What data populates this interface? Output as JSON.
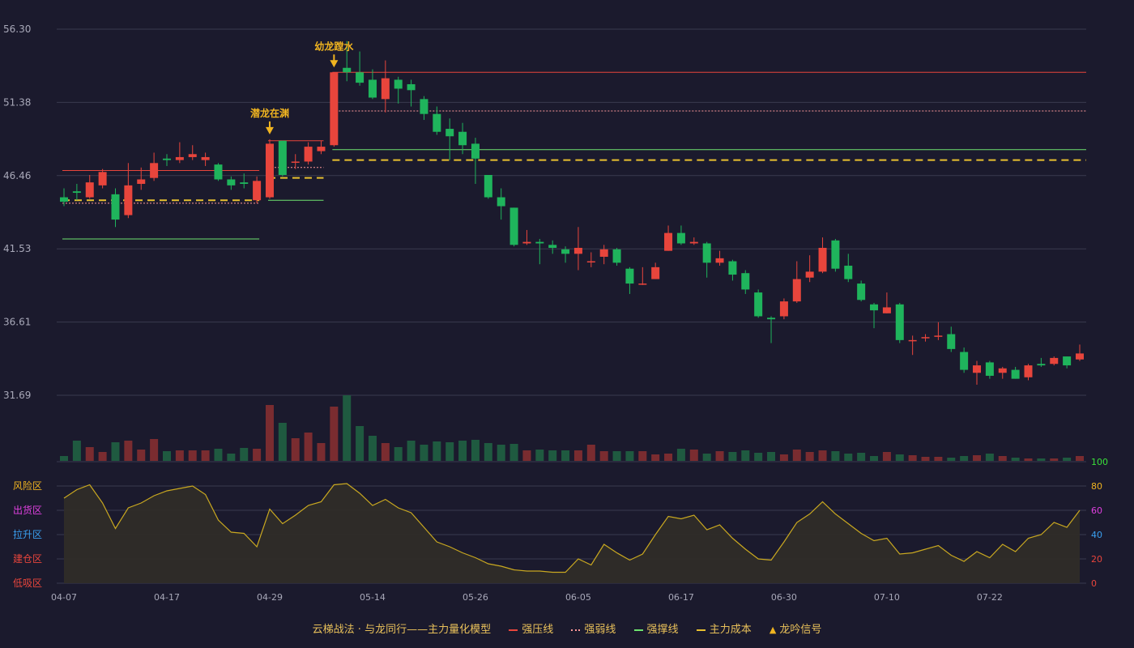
{
  "chart_data": {
    "type": "candlestick",
    "title": "",
    "price_axis": {
      "ticks": [
        "56.30",
        "51.38",
        "46.46",
        "41.53",
        "36.61",
        "31.69"
      ],
      "range": [
        31.69,
        56.3
      ]
    },
    "x_labels": [
      "04-07",
      "04-17",
      "04-29",
      "05-14",
      "05-26",
      "06-05",
      "06-17",
      "06-30",
      "07-10",
      "07-22"
    ],
    "x_label_index": [
      0,
      8,
      16,
      24,
      32,
      40,
      48,
      56,
      64,
      72
    ],
    "candles": [
      [
        45.0,
        44.7,
        45.6,
        44.4
      ],
      [
        45.4,
        45.3,
        45.9,
        44.8
      ],
      [
        45.0,
        46.0,
        46.5,
        44.9
      ],
      [
        45.8,
        46.7,
        46.9,
        45.6
      ],
      [
        45.2,
        43.5,
        45.6,
        43.0
      ],
      [
        43.8,
        45.8,
        47.3,
        43.6
      ],
      [
        45.9,
        46.2,
        47.0,
        45.5
      ],
      [
        46.3,
        47.3,
        48.0,
        46.1
      ],
      [
        47.6,
        47.5,
        47.9,
        47.1
      ],
      [
        47.5,
        47.7,
        48.7,
        47.3
      ],
      [
        47.7,
        47.9,
        48.5,
        47.5
      ],
      [
        47.5,
        47.7,
        48.0,
        47.1
      ],
      [
        47.2,
        46.2,
        47.3,
        46.1
      ],
      [
        46.2,
        45.8,
        46.4,
        45.5
      ],
      [
        46.0,
        45.9,
        46.6,
        45.6
      ],
      [
        44.8,
        46.1,
        46.4,
        44.6
      ],
      [
        45.0,
        48.6,
        48.9,
        44.9
      ],
      [
        48.8,
        46.5,
        48.8,
        46.4
      ],
      [
        47.4,
        47.4,
        47.9,
        46.9
      ],
      [
        47.4,
        48.4,
        48.7,
        47.2
      ],
      [
        48.1,
        48.4,
        48.8,
        47.9
      ],
      [
        48.5,
        53.4,
        53.4,
        48.4
      ],
      [
        53.7,
        53.4,
        55.5,
        52.8
      ],
      [
        53.4,
        52.7,
        54.8,
        52.5
      ],
      [
        52.9,
        51.7,
        53.6,
        51.6
      ],
      [
        51.6,
        53.0,
        54.2,
        50.7
      ],
      [
        52.9,
        52.3,
        53.1,
        51.3
      ],
      [
        52.6,
        52.2,
        52.9,
        51.1
      ],
      [
        51.6,
        50.6,
        51.8,
        50.2
      ],
      [
        50.6,
        49.4,
        51.1,
        49.2
      ],
      [
        49.6,
        49.1,
        50.3,
        47.5
      ],
      [
        49.4,
        48.5,
        50.0,
        47.9
      ],
      [
        48.6,
        47.6,
        49.0,
        45.9
      ],
      [
        46.5,
        45.0,
        46.5,
        44.9
      ],
      [
        45.0,
        44.4,
        45.6,
        43.5
      ],
      [
        44.3,
        41.8,
        44.3,
        41.7
      ],
      [
        41.9,
        42.0,
        42.8,
        41.8
      ],
      [
        42.0,
        41.9,
        42.2,
        40.5
      ],
      [
        41.8,
        41.6,
        42.1,
        41.2
      ],
      [
        41.5,
        41.2,
        41.7,
        40.6
      ],
      [
        41.2,
        41.6,
        43.0,
        40.1
      ],
      [
        40.7,
        40.7,
        41.3,
        40.3
      ],
      [
        41.0,
        41.5,
        41.8,
        40.5
      ],
      [
        41.5,
        40.6,
        41.6,
        40.4
      ],
      [
        40.2,
        39.2,
        40.3,
        38.5
      ],
      [
        39.2,
        39.2,
        40.3,
        39.1
      ],
      [
        39.5,
        40.3,
        40.6,
        39.5
      ],
      [
        41.4,
        42.6,
        43.1,
        41.4
      ],
      [
        42.6,
        41.9,
        43.1,
        41.8
      ],
      [
        41.9,
        42.0,
        42.3,
        41.8
      ],
      [
        41.9,
        40.6,
        42.0,
        39.6
      ],
      [
        40.6,
        40.9,
        41.4,
        40.4
      ],
      [
        40.7,
        39.8,
        40.8,
        39.4
      ],
      [
        39.9,
        38.8,
        40.1,
        38.5
      ],
      [
        38.6,
        37.0,
        38.8,
        36.9
      ],
      [
        36.9,
        36.8,
        37.0,
        35.2
      ],
      [
        37.0,
        38.0,
        38.2,
        36.8
      ],
      [
        38.0,
        39.5,
        40.7,
        37.9
      ],
      [
        39.6,
        40.0,
        41.1,
        39.3
      ],
      [
        40.0,
        41.6,
        42.3,
        39.9
      ],
      [
        42.1,
        40.2,
        42.2,
        40.0
      ],
      [
        40.4,
        39.5,
        41.2,
        39.3
      ],
      [
        39.2,
        38.1,
        39.4,
        38.0
      ],
      [
        37.8,
        37.4,
        37.9,
        36.2
      ],
      [
        37.2,
        37.6,
        38.6,
        37.2
      ],
      [
        37.8,
        35.4,
        37.9,
        35.2
      ],
      [
        35.4,
        35.4,
        35.7,
        34.4
      ],
      [
        35.6,
        35.6,
        35.8,
        35.3
      ],
      [
        35.7,
        35.7,
        36.6,
        35.4
      ],
      [
        35.8,
        34.8,
        36.3,
        34.6
      ],
      [
        34.6,
        33.4,
        34.9,
        33.2
      ],
      [
        33.2,
        33.7,
        34.0,
        32.4
      ],
      [
        33.9,
        33.0,
        34.0,
        32.8
      ],
      [
        33.2,
        33.5,
        33.6,
        32.8
      ],
      [
        33.4,
        32.8,
        33.6,
        32.8
      ],
      [
        32.9,
        33.7,
        33.8,
        32.7
      ],
      [
        33.8,
        33.7,
        34.2,
        33.6
      ],
      [
        33.8,
        34.2,
        34.3,
        33.7
      ],
      [
        34.3,
        33.7,
        34.3,
        33.5
      ],
      [
        34.1,
        34.5,
        35.1,
        34.0
      ]
    ],
    "volume": [
      6,
      25,
      17,
      11,
      23,
      25,
      14,
      27,
      12,
      13,
      13,
      13,
      15,
      9,
      16,
      15,
      69,
      47,
      28,
      35,
      22,
      67,
      81,
      43,
      31,
      22,
      17,
      25,
      20,
      24,
      23,
      25,
      26,
      22,
      20,
      21,
      13,
      14,
      13,
      13,
      13,
      20,
      12,
      12,
      12,
      12,
      8,
      9,
      15,
      14,
      9,
      12,
      11,
      13,
      10,
      11,
      8,
      14,
      11,
      13,
      12,
      9,
      10,
      6,
      11,
      8,
      7,
      5,
      5,
      4,
      6,
      7,
      9,
      6,
      4,
      3,
      3,
      3,
      4,
      6
    ],
    "sentiment": [
      70,
      77,
      81,
      66,
      45,
      62,
      66,
      72,
      76,
      78,
      80,
      73,
      52,
      42,
      41,
      30,
      61,
      49,
      56,
      64,
      67,
      81,
      82,
      74,
      64,
      69,
      62,
      58,
      46,
      34,
      30,
      25,
      21,
      16,
      14,
      11,
      10,
      10,
      9,
      9,
      20,
      15,
      32,
      25,
      19,
      24,
      40,
      55,
      53,
      56,
      44,
      48,
      37,
      28,
      20,
      19,
      34,
      50,
      57,
      67,
      57,
      49,
      41,
      35,
      37,
      24,
      25,
      28,
      31,
      23,
      18,
      26,
      21,
      32,
      26,
      37,
      40,
      50,
      46,
      60
    ],
    "signals": [
      {
        "label": "潜龙在渊",
        "index": 16
      },
      {
        "label": "幼龙蹚水",
        "index": 21
      }
    ],
    "levels": [
      {
        "name": "强压线",
        "value": 46.8,
        "from": 0,
        "to": 15,
        "style": "solid"
      },
      {
        "name": "强弱线",
        "value": 44.6,
        "from": 0,
        "to": 15,
        "style": "dotted"
      },
      {
        "name": "强撑线",
        "value": 42.2,
        "from": 0,
        "to": 15,
        "style": "solid"
      },
      {
        "name": "主力成本",
        "value": 44.8,
        "from": 0,
        "to": 15,
        "style": "dashed"
      },
      {
        "name": "强压线",
        "value": 48.8,
        "from": 16,
        "to": 20,
        "style": "solid"
      },
      {
        "name": "强弱线",
        "value": 47.0,
        "from": 16,
        "to": 20,
        "style": "dotted"
      },
      {
        "name": "强撑线",
        "value": 44.8,
        "from": 16,
        "to": 20,
        "style": "solid"
      },
      {
        "name": "主力成本",
        "value": 46.3,
        "from": 16,
        "to": 20,
        "style": "dashed"
      },
      {
        "name": "强压线",
        "value": 53.4,
        "from": 21,
        "to": 79,
        "style": "solid"
      },
      {
        "name": "强弱线",
        "value": 50.8,
        "from": 21,
        "to": 79,
        "style": "dotted"
      },
      {
        "name": "强撑线",
        "value": 48.2,
        "from": 21,
        "to": 79,
        "style": "solid"
      },
      {
        "name": "主力成本",
        "value": 47.5,
        "from": 21,
        "to": 79,
        "style": "dashed"
      }
    ],
    "sentiment_axis": {
      "ticks_right": [
        "100",
        "80",
        "60",
        "40",
        "20",
        "0"
      ],
      "zones_left": [
        "风险区",
        "出货区",
        "拉升区",
        "建仓区",
        "低吸区"
      ]
    },
    "colors": {
      "up": "#e8453c",
      "down": "#1fb45c",
      "vol_up": "#7a2c30",
      "vol_down": "#1f5a40",
      "pressure": "#e8453c",
      "weak": "#ff9a9a",
      "support": "#6ee36e",
      "cost": "#e8c030",
      "signal": "#f0b420",
      "sentiment_line": "#c9a820",
      "sentiment_fill": "#2f2c28",
      "grid": "#3a3a4e",
      "axis_text": "#a8a8b8",
      "zone_colors": [
        "#f0b420",
        "#e040e0",
        "#3aa0f0",
        "#e8453c",
        "#e8453c"
      ],
      "right_tick_colors": [
        "#3ae03a",
        "#f0b420",
        "#e040e0",
        "#3aa0f0",
        "#e8453c",
        "#e8453c"
      ]
    }
  },
  "legend": {
    "title": "云梯战法 · 与龙同行——主力量化模型",
    "items": [
      {
        "label": "强压线",
        "color": "#e8453c",
        "style": "solid"
      },
      {
        "label": "强弱线",
        "color": "#ff9a9a",
        "style": "dotted"
      },
      {
        "label": "强撑线",
        "color": "#6ee36e",
        "style": "solid"
      },
      {
        "label": "主力成本",
        "color": "#e8c030",
        "style": "dashed"
      },
      {
        "label": "龙吟信号",
        "color": "#f0b420",
        "icon": "▲"
      }
    ]
  }
}
